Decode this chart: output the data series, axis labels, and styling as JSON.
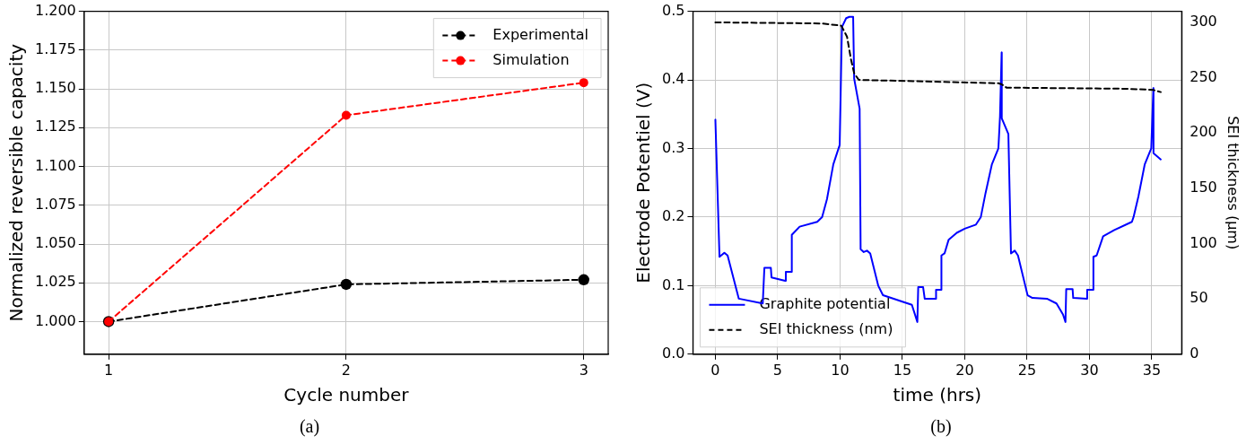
{
  "chart_data": [
    {
      "type": "line",
      "xlabel": "Cycle number",
      "ylabel": "Normalized reversible capacity",
      "annotations": [
        "(a)"
      ],
      "x": [
        1,
        2,
        3
      ],
      "xlim": [
        0.897,
        3.103
      ],
      "xticks": [
        1,
        2,
        3
      ],
      "ylim": [
        0.979,
        1.2
      ],
      "yticks": [
        {
          "value": 1.0,
          "label": "1.000"
        },
        {
          "value": 1.025,
          "label": "1.025"
        },
        {
          "value": 1.05,
          "label": "1.050"
        },
        {
          "value": 1.075,
          "label": "1.075"
        },
        {
          "value": 1.1,
          "label": "1.100"
        },
        {
          "value": 1.125,
          "label": "1.125"
        },
        {
          "value": 1.15,
          "label": "1.150"
        },
        {
          "value": 1.175,
          "label": "1.175"
        },
        {
          "value": 1.2,
          "label": "1.200"
        }
      ],
      "grid": true,
      "legend": "top right",
      "marker": "circle",
      "line_style": "dashed",
      "series": [
        {
          "name": "Experimental",
          "color": "#000000",
          "values": [
            1.0,
            1.024,
            1.027
          ]
        },
        {
          "name": "Simulation",
          "color": "#ff0000",
          "values": [
            1.0,
            1.133,
            1.154
          ]
        }
      ]
    },
    {
      "type": "line",
      "xlabel": "time (hrs)",
      "ylabel": "Electrode Potentiel (V)",
      "y2label": "SEI thickness (μm)",
      "annotations": [
        "(b)"
      ],
      "xlim": [
        -1.8,
        37.4
      ],
      "xticks": [
        0,
        5,
        10,
        15,
        20,
        25,
        30,
        35
      ],
      "ylim": [
        0,
        0.5
      ],
      "yticks": [
        {
          "value": 0,
          "label": "0.0"
        },
        0.1,
        0.2,
        0.3,
        0.4,
        0.5
      ],
      "y2lim": [
        0,
        310
      ],
      "y2ticks": [
        0,
        50,
        100,
        150,
        200,
        250,
        300
      ],
      "grid": true,
      "legend": "bottom left",
      "marker": "none",
      "series": [
        {
          "name": "Graphite potential",
          "color": "#0000ff",
          "line_style": "solid",
          "x": [
            0,
            0.33,
            0.72,
            0.98,
            1.88,
            3.8,
            3.93,
            4.45,
            4.5,
            5.6,
            5.65,
            6.12,
            6.13,
            6.76,
            8.17,
            8.56,
            8.95,
            9.46,
            9.97,
            10.15,
            10.49,
            10.75,
            11.05,
            11.13,
            11.57,
            11.65,
            11.9,
            12.16,
            12.42,
            13.06,
            13.44,
            15.76,
            16.2,
            16.27,
            16.66,
            16.79,
            17.69,
            17.7,
            18.12,
            18.13,
            18.38,
            18.71,
            19.36,
            20.0,
            20.9,
            21.29,
            21.67,
            22.18,
            22.7,
            22.83,
            22.96,
            22.97,
            23.5,
            23.71,
            24.01,
            24.27,
            25.04,
            25.43,
            26.59,
            27.36,
            27.88,
            28.08,
            28.14,
            28.65,
            28.7,
            29.81,
            29.82,
            30.27,
            30.32,
            30.58,
            31.1,
            32.0,
            33.41,
            33.54,
            33.93,
            34.44,
            34.96,
            35.13,
            35.14,
            35.72
          ],
          "values": [
            0.342,
            0.142,
            0.148,
            0.144,
            0.081,
            0.074,
            0.126,
            0.126,
            0.112,
            0.107,
            0.12,
            0.12,
            0.174,
            0.186,
            0.193,
            0.2,
            0.226,
            0.277,
            0.305,
            0.477,
            0.49,
            0.492,
            0.492,
            0.402,
            0.358,
            0.153,
            0.149,
            0.151,
            0.147,
            0.1,
            0.086,
            0.072,
            0.047,
            0.098,
            0.098,
            0.081,
            0.081,
            0.094,
            0.094,
            0.144,
            0.147,
            0.167,
            0.177,
            0.183,
            0.189,
            0.2,
            0.235,
            0.277,
            0.3,
            0.347,
            0.44,
            0.344,
            0.321,
            0.147,
            0.151,
            0.144,
            0.086,
            0.082,
            0.081,
            0.074,
            0.058,
            0.047,
            0.095,
            0.095,
            0.082,
            0.081,
            0.094,
            0.094,
            0.142,
            0.144,
            0.172,
            0.181,
            0.193,
            0.2,
            0.23,
            0.277,
            0.3,
            0.388,
            0.293,
            0.284
          ]
        },
        {
          "name": "SEI thickness (nm)",
          "color": "#000000",
          "line_style": "dashed",
          "axis": "y2",
          "x": [
            0,
            8.56,
            10.1,
            10.56,
            10.87,
            11.13,
            11.5,
            22.7,
            22.96,
            23.35,
            32.8,
            35.1,
            35.72
          ],
          "values": [
            300,
            299,
            297,
            287,
            267,
            254,
            248,
            245,
            244,
            241,
            240,
            239,
            237
          ]
        }
      ]
    }
  ]
}
